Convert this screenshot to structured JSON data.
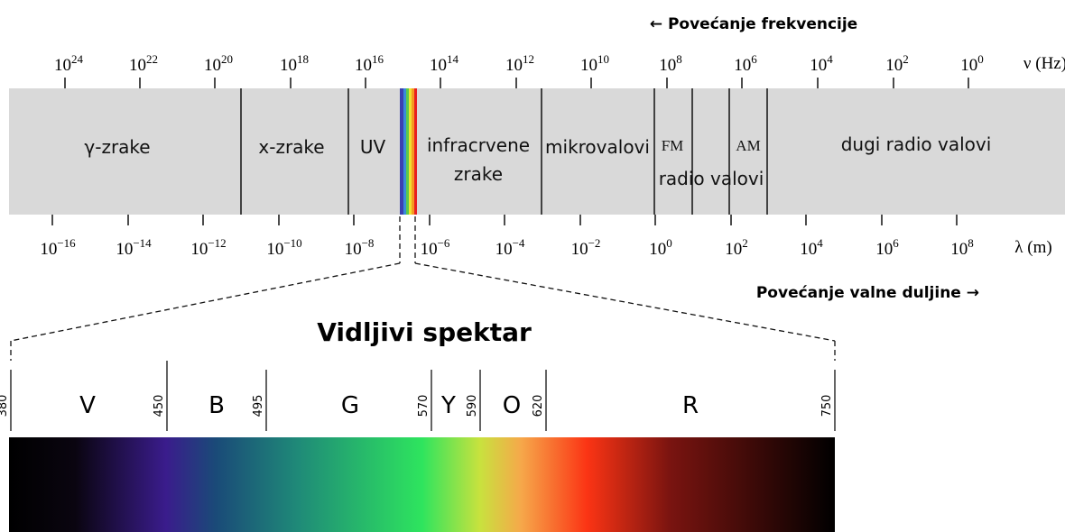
{
  "frequency_axis": {
    "title": "← Povećanje frekvencije",
    "unit": "ν (Hz)",
    "ticks": [
      {
        "base": "10",
        "exp": "24"
      },
      {
        "base": "10",
        "exp": "22"
      },
      {
        "base": "10",
        "exp": "20"
      },
      {
        "base": "10",
        "exp": "18"
      },
      {
        "base": "10",
        "exp": "16"
      },
      {
        "base": "10",
        "exp": "14"
      },
      {
        "base": "10",
        "exp": "12"
      },
      {
        "base": "10",
        "exp": "10"
      },
      {
        "base": "10",
        "exp": "8"
      },
      {
        "base": "10",
        "exp": "6"
      },
      {
        "base": "10",
        "exp": "4"
      },
      {
        "base": "10",
        "exp": "2"
      },
      {
        "base": "10",
        "exp": "0"
      }
    ]
  },
  "bands": [
    {
      "lines": [
        "γ-zrake"
      ]
    },
    {
      "lines": [
        "x-zrake"
      ]
    },
    {
      "lines": [
        "UV"
      ]
    },
    {
      "lines": [
        "infracrvene",
        "zrake"
      ]
    },
    {
      "lines": [
        "mikrovalovi"
      ]
    },
    {
      "lines": [
        "FM"
      ]
    },
    {
      "lines": [
        "radio valovi"
      ]
    },
    {
      "lines": [
        "AM"
      ]
    },
    {
      "lines": [
        "dugi radio valovi"
      ]
    }
  ],
  "wavelength_axis": {
    "title": "Povećanje valne duljine →",
    "unit": "λ (m)",
    "ticks": [
      {
        "base": "10",
        "exp": "−16"
      },
      {
        "base": "10",
        "exp": "−14"
      },
      {
        "base": "10",
        "exp": "−12"
      },
      {
        "base": "10",
        "exp": "−10"
      },
      {
        "base": "10",
        "exp": "−8"
      },
      {
        "base": "10",
        "exp": "−6"
      },
      {
        "base": "10",
        "exp": "−4"
      },
      {
        "base": "10",
        "exp": "−2"
      },
      {
        "base": "10",
        "exp": "0"
      },
      {
        "base": "10",
        "exp": "2"
      },
      {
        "base": "10",
        "exp": "4"
      },
      {
        "base": "10",
        "exp": "6"
      },
      {
        "base": "10",
        "exp": "8"
      }
    ]
  },
  "visible": {
    "title": "Vidljivi spektar",
    "boundaries": [
      380,
      450,
      495,
      570,
      590,
      620,
      750
    ],
    "colors": [
      "V",
      "B",
      "G",
      "Y",
      "O",
      "R"
    ]
  }
}
